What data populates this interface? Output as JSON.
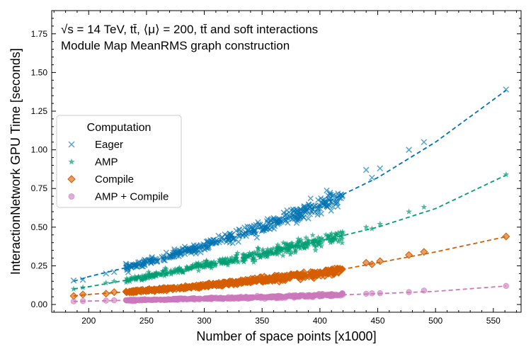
{
  "chart_data": {
    "type": "scatter",
    "title": "√s = 14 TeV, tt̄, ⟨μ⟩ = 200, tt̄ and soft interactions",
    "subtitle": "Module Map MeanRMS graph construction",
    "xlabel": "Number of space points [x1000]",
    "ylabel": "InteractionNetwork GPU Time [seconds]",
    "xlim": [
      168,
      574
    ],
    "ylim": [
      -0.05,
      1.9
    ],
    "xticks": [
      200,
      250,
      300,
      350,
      400,
      450,
      500,
      550
    ],
    "yticks": [
      0.0,
      0.25,
      0.5,
      0.75,
      1.0,
      1.25,
      1.5,
      1.75
    ],
    "ytick_labels": [
      "0.00",
      "0.25",
      "0.50",
      "0.75",
      "1.00",
      "1.25",
      "1.50",
      "1.75"
    ],
    "grid": false,
    "legend": {
      "title": "Computation",
      "placement": "center-left"
    },
    "series": [
      {
        "name": "Eager",
        "marker": "x",
        "color": "#0173b2",
        "fit_x": [
          187,
          200,
          250,
          300,
          350,
          400,
          450,
          500,
          562
        ],
        "fit_y": [
          0.15,
          0.18,
          0.27,
          0.38,
          0.5,
          0.64,
          0.82,
          1.05,
          1.39
        ],
        "outliers": [
          [
            187,
            0.155
          ],
          [
            195,
            0.16
          ],
          [
            215,
            0.2
          ],
          [
            222,
            0.21
          ],
          [
            440,
            0.87
          ],
          [
            445,
            0.82
          ],
          [
            452,
            0.88
          ],
          [
            477,
            1.0
          ],
          [
            490,
            1.05
          ],
          [
            561,
            1.39
          ]
        ]
      },
      {
        "name": "AMP",
        "marker": "*",
        "color": "#029e73",
        "fit_x": [
          187,
          200,
          250,
          300,
          350,
          400,
          450,
          500,
          562
        ],
        "fit_y": [
          0.1,
          0.115,
          0.18,
          0.25,
          0.33,
          0.41,
          0.5,
          0.62,
          0.84
        ],
        "outliers": [
          [
            187,
            0.1
          ],
          [
            195,
            0.11
          ],
          [
            215,
            0.14
          ],
          [
            222,
            0.15
          ],
          [
            440,
            0.5
          ],
          [
            445,
            0.49
          ],
          [
            452,
            0.52
          ],
          [
            477,
            0.6
          ],
          [
            490,
            0.63
          ],
          [
            561,
            0.84
          ]
        ]
      },
      {
        "name": "Compile",
        "marker": "D",
        "color": "#d55e00",
        "fit_x": [
          187,
          200,
          250,
          300,
          350,
          400,
          450,
          500,
          562
        ],
        "fit_y": [
          0.055,
          0.065,
          0.09,
          0.12,
          0.16,
          0.2,
          0.27,
          0.34,
          0.44
        ],
        "outliers": [
          [
            187,
            0.055
          ],
          [
            195,
            0.065
          ],
          [
            215,
            0.07
          ],
          [
            222,
            0.08
          ],
          [
            440,
            0.27
          ],
          [
            445,
            0.26
          ],
          [
            452,
            0.28
          ],
          [
            477,
            0.32
          ],
          [
            490,
            0.34
          ],
          [
            561,
            0.44
          ]
        ]
      },
      {
        "name": "AMP + Compile",
        "marker": "o",
        "color": "#cc78bc",
        "fit_x": [
          187,
          200,
          250,
          300,
          350,
          400,
          450,
          500,
          562
        ],
        "fit_y": [
          0.02,
          0.022,
          0.03,
          0.038,
          0.047,
          0.058,
          0.07,
          0.085,
          0.12
        ],
        "outliers": [
          [
            187,
            0.02
          ],
          [
            195,
            0.022
          ],
          [
            215,
            0.025
          ],
          [
            222,
            0.027
          ],
          [
            440,
            0.07
          ],
          [
            445,
            0.072
          ],
          [
            452,
            0.073
          ],
          [
            477,
            0.08
          ],
          [
            490,
            0.09
          ],
          [
            561,
            0.12
          ]
        ]
      }
    ],
    "dense_band": {
      "x_range": [
        232,
        420
      ],
      "points_per_series": 420,
      "scatter_fraction": [
        0.04,
        0.05,
        0.05,
        0.08
      ]
    }
  }
}
